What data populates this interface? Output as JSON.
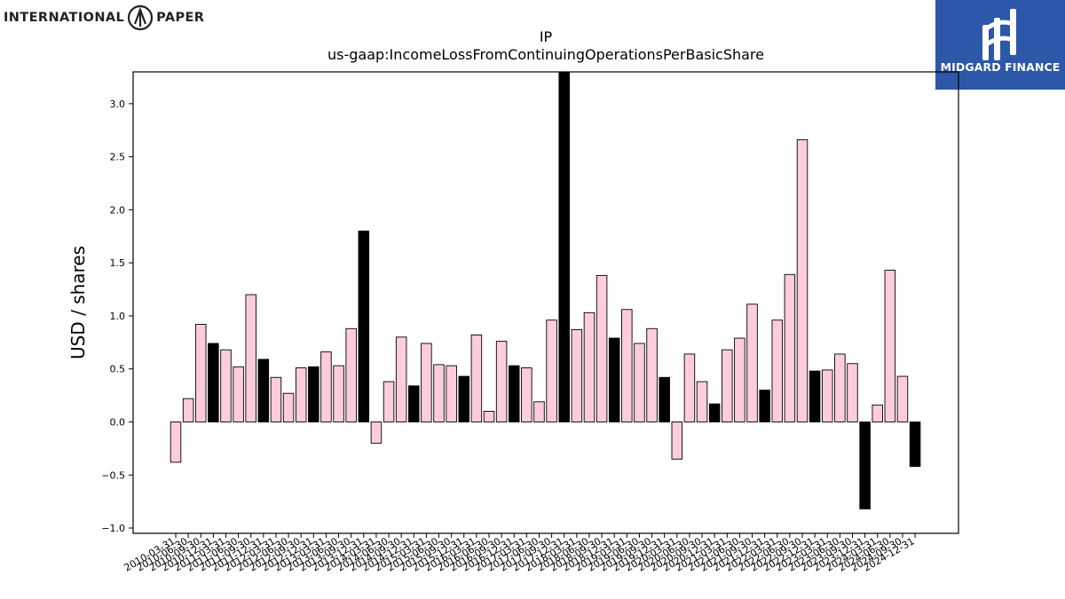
{
  "brand": {
    "company_left": "INTERNATIONAL",
    "company_right": "PAPER",
    "company_logo_icon": "international-paper-logo-icon",
    "partner_name": "MIDGARD FINANCE",
    "partner_logo_icon": "midgard-rune-logo-icon",
    "partner_bg_color": "#2d57a8"
  },
  "chart_data": {
    "type": "bar",
    "title": "IP",
    "subtitle": "us-gaap:IncomeLossFromContinuingOperationsPerBasicShare",
    "xlabel": "",
    "ylabel": "USD / shares",
    "ylim": [
      -1.05,
      3.3
    ],
    "yticks": [
      -1.0,
      -0.5,
      0.0,
      0.5,
      1.0,
      1.5,
      2.0,
      2.5,
      3.0
    ],
    "grid": false,
    "colors": {
      "quarter": "#ffccdd",
      "annual": "#000000",
      "edge": "#000000"
    },
    "categories": [
      "2010-03-31",
      "2010-06-30",
      "2010-09-30",
      "2010-12-31",
      "2011-03-31",
      "2011-06-30",
      "2011-09-30",
      "2011-12-31",
      "2012-03-31",
      "2012-06-30",
      "2012-09-30",
      "2012-12-31",
      "2013-03-31",
      "2013-06-30",
      "2013-09-30",
      "2013-12-31",
      "2014-03-31",
      "2014-06-30",
      "2014-09-30",
      "2014-12-31",
      "2015-03-31",
      "2015-06-30",
      "2015-09-30",
      "2015-12-31",
      "2016-03-31",
      "2016-06-30",
      "2016-09-30",
      "2016-12-31",
      "2017-03-31",
      "2017-06-30",
      "2017-09-30",
      "2017-12-31",
      "2018-03-31",
      "2018-06-30",
      "2018-09-30",
      "2018-12-31",
      "2019-03-31",
      "2019-06-30",
      "2019-09-30",
      "2019-12-31",
      "2020-03-31",
      "2020-06-30",
      "2020-09-30",
      "2020-12-31",
      "2021-03-31",
      "2021-06-30",
      "2021-09-30",
      "2021-12-31",
      "2022-03-31",
      "2022-06-30",
      "2022-09-30",
      "2022-12-31",
      "2023-03-31",
      "2023-06-30",
      "2023-09-30",
      "2023-12-31",
      "2024-03-31",
      "2024-06-30",
      "2024-09-30",
      "2024-12-31"
    ],
    "values": [
      -0.38,
      0.22,
      0.92,
      0.74,
      0.68,
      0.52,
      1.2,
      0.59,
      0.42,
      0.27,
      0.51,
      0.52,
      0.66,
      0.53,
      0.88,
      1.8,
      -0.2,
      0.38,
      0.8,
      0.34,
      0.74,
      0.54,
      0.53,
      0.43,
      0.82,
      0.1,
      0.76,
      0.53,
      0.51,
      0.19,
      0.96,
      3.3,
      0.87,
      1.03,
      1.38,
      0.79,
      1.06,
      0.74,
      0.88,
      0.42,
      -0.35,
      0.64,
      0.38,
      0.17,
      0.68,
      0.79,
      1.11,
      0.3,
      0.96,
      1.39,
      2.66,
      0.48,
      0.49,
      0.64,
      0.55,
      -0.82,
      0.16,
      1.43,
      0.43,
      -0.42
    ],
    "period_type": [
      "Q",
      "Q",
      "Q",
      "FY",
      "Q",
      "Q",
      "Q",
      "FY",
      "Q",
      "Q",
      "Q",
      "FY",
      "Q",
      "Q",
      "Q",
      "FY",
      "Q",
      "Q",
      "Q",
      "FY",
      "Q",
      "Q",
      "Q",
      "FY",
      "Q",
      "Q",
      "Q",
      "FY",
      "Q",
      "Q",
      "Q",
      "FY",
      "Q",
      "Q",
      "Q",
      "FY",
      "Q",
      "Q",
      "Q",
      "FY",
      "Q",
      "Q",
      "Q",
      "FY",
      "Q",
      "Q",
      "Q",
      "FY",
      "Q",
      "Q",
      "Q",
      "FY",
      "Q",
      "Q",
      "Q",
      "FY",
      "Q",
      "Q",
      "Q",
      "FY"
    ]
  }
}
